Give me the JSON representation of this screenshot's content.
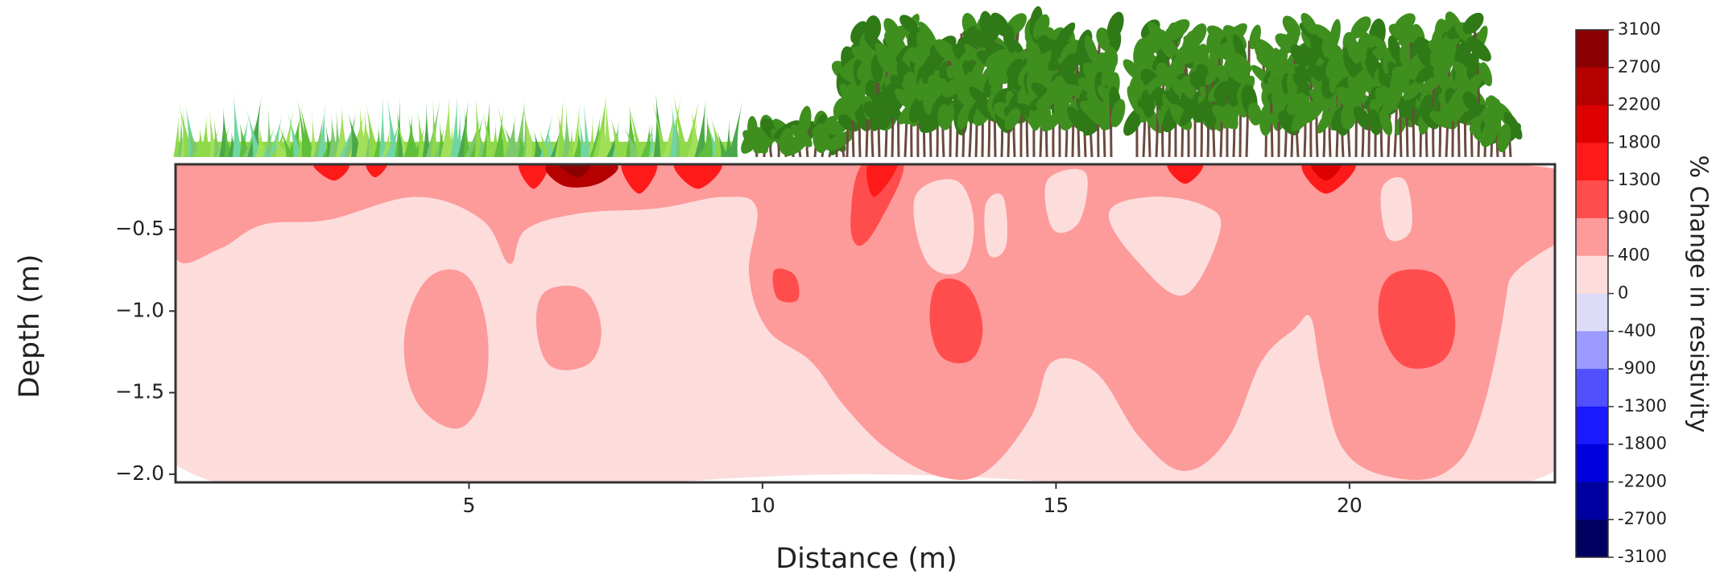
{
  "chart_data": {
    "type": "contour",
    "xlabel": "Distance (m)",
    "ylabel": "Depth (m)",
    "xlim": [
      0,
      23.5
    ],
    "ylim": [
      -2.05,
      -0.1
    ],
    "xticks": [
      5,
      10,
      15,
      20
    ],
    "yticks": [
      {
        "value": -0.5,
        "label": "−0.5"
      },
      {
        "value": -1.0,
        "label": "−1.0"
      },
      {
        "value": -1.5,
        "label": "−1.5"
      },
      {
        "value": -2.0,
        "label": "−2.0"
      }
    ],
    "colorbar": {
      "label": "% Change in resistivity",
      "ticks": [
        3100,
        2700,
        2200,
        1800,
        1300,
        900,
        400,
        0,
        -400,
        -900,
        -1300,
        -1800,
        -2200,
        -2700,
        -3100
      ],
      "colors": [
        "#8b0000",
        "#b50000",
        "#dd0000",
        "#ff1a1a",
        "#ff4d4d",
        "#fd9a9a",
        "#fddcdc",
        "#dcdcf8",
        "#9a9aff",
        "#5050ff",
        "#1a1aff",
        "#0000dd",
        "#0000a0",
        "#000060"
      ]
    },
    "regions": [
      {
        "level": 0,
        "x": [
          0,
          11.7,
          23.3,
          23.4,
          11.7,
          0.3
        ],
        "y": [
          -0.1,
          -0.1,
          -0.1,
          -2.0,
          -2.0,
          -2.0
        ]
      },
      {
        "level": 400,
        "x": [
          0,
          22.83,
          22.7,
          22.23,
          21.67,
          20.74,
          19.9,
          19.52,
          19.34,
          19.06,
          18.5,
          17.93,
          17.19,
          16.44,
          15.69,
          14.94,
          14.57,
          13.82,
          13.07,
          12.14,
          11.39,
          10.83,
          10.08,
          9.77,
          9.9,
          9.34,
          8.21,
          6.91,
          5.97,
          5.69,
          5.22,
          4.1,
          2.61,
          1.49,
          0.74,
          0
        ],
        "y": [
          -0.1,
          -0.1,
          -0.84,
          -1.65,
          -1.98,
          -2.02,
          -1.85,
          -1.38,
          -1.04,
          -1.11,
          -1.31,
          -1.78,
          -1.98,
          -1.78,
          -1.38,
          -1.31,
          -1.65,
          -1.98,
          -2.02,
          -1.85,
          -1.58,
          -1.31,
          -1.11,
          -0.77,
          -0.37,
          -0.3,
          -0.37,
          -0.4,
          -0.5,
          -0.71,
          -0.44,
          -0.3,
          -0.44,
          -0.47,
          -0.62,
          -0.67
        ]
      },
      {
        "level": 400,
        "x": [
          4.3,
          4.95,
          5.3,
          5.25,
          4.8,
          4.1,
          3.9
        ],
        "y": [
          -0.8,
          -0.78,
          -1.1,
          -1.5,
          -1.72,
          -1.55,
          -1.15
        ]
      },
      {
        "level": 400,
        "x": [
          6.3,
          6.95,
          7.25,
          7.05,
          6.4,
          6.15
        ],
        "y": [
          -0.88,
          -0.87,
          -1.1,
          -1.32,
          -1.34,
          -1.1
        ]
      },
      {
        "level": 0,
        "x": [
          12.6,
          13.3,
          13.6,
          13.4,
          12.8
        ],
        "y": [
          -0.3,
          -0.2,
          -0.45,
          -0.75,
          -0.7
        ]
      },
      {
        "level": 0,
        "x": [
          13.8,
          14.1,
          14.15,
          13.85
        ],
        "y": [
          -0.35,
          -0.3,
          -0.6,
          -0.65
        ]
      },
      {
        "level": 0,
        "x": [
          14.85,
          15.5,
          15.4,
          14.95
        ],
        "y": [
          -0.2,
          -0.15,
          -0.45,
          -0.5
        ]
      },
      {
        "level": 0,
        "x": [
          15.9,
          16.6,
          17.5,
          17.8,
          17.2,
          16.4
        ],
        "y": [
          -0.4,
          -0.3,
          -0.35,
          -0.5,
          -0.9,
          -0.7
        ]
      },
      {
        "level": 0,
        "x": [
          20.55,
          20.95,
          21.05,
          20.65
        ],
        "y": [
          -0.25,
          -0.2,
          -0.5,
          -0.55
        ]
      },
      {
        "level": 900,
        "x": [
          13.0,
          13.5,
          13.75,
          13.55,
          13.05,
          12.85
        ],
        "y": [
          -0.82,
          -0.85,
          -1.1,
          -1.3,
          -1.28,
          -1.05
        ]
      },
      {
        "level": 900,
        "x": [
          20.7,
          21.5,
          21.8,
          21.6,
          20.9,
          20.5
        ],
        "y": [
          -0.78,
          -0.78,
          -1.05,
          -1.3,
          -1.33,
          -1.05
        ]
      },
      {
        "level": 900,
        "x": [
          10.2,
          10.55,
          10.6,
          10.25
        ],
        "y": [
          -0.75,
          -0.78,
          -0.93,
          -0.92
        ]
      },
      {
        "level": 900,
        "x": [
          11.7,
          12.4,
          12.0,
          11.65,
          11.5
        ],
        "y": [
          -0.1,
          -0.1,
          -0.45,
          -0.6,
          -0.45
        ]
      },
      {
        "level": 1300,
        "x": [
          2.35,
          2.95,
          2.7
        ],
        "y": [
          -0.1,
          -0.1,
          -0.2
        ]
      },
      {
        "level": 1300,
        "x": [
          3.25,
          3.6,
          3.4
        ],
        "y": [
          -0.1,
          -0.1,
          -0.18
        ]
      },
      {
        "level": 1300,
        "x": [
          5.85,
          6.35,
          6.1
        ],
        "y": [
          -0.1,
          -0.1,
          -0.25
        ]
      },
      {
        "level": 1300,
        "x": [
          7.6,
          8.2,
          7.9
        ],
        "y": [
          -0.1,
          -0.1,
          -0.28
        ]
      },
      {
        "level": 1300,
        "x": [
          8.5,
          9.3,
          8.9
        ],
        "y": [
          -0.1,
          -0.1,
          -0.25
        ]
      },
      {
        "level": 1300,
        "x": [
          16.9,
          17.5,
          17.2
        ],
        "y": [
          -0.1,
          -0.1,
          -0.22
        ]
      },
      {
        "level": 1300,
        "x": [
          19.2,
          20.1,
          19.6
        ],
        "y": [
          -0.1,
          -0.1,
          -0.28
        ]
      },
      {
        "level": 1300,
        "x": [
          11.8,
          12.3,
          11.9
        ],
        "y": [
          -0.1,
          -0.1,
          -0.3
        ]
      },
      {
        "level": 1800,
        "x": [
          19.35,
          19.85,
          19.6
        ],
        "y": [
          -0.1,
          -0.1,
          -0.2
        ]
      },
      {
        "level": 2200,
        "x": [
          6.35,
          7.5,
          7.2,
          6.6
        ],
        "y": [
          -0.1,
          -0.1,
          -0.22,
          -0.23
        ]
      },
      {
        "level": 2700,
        "x": [
          6.55,
          7.05,
          6.85
        ],
        "y": [
          -0.1,
          -0.1,
          -0.18
        ]
      }
    ]
  }
}
